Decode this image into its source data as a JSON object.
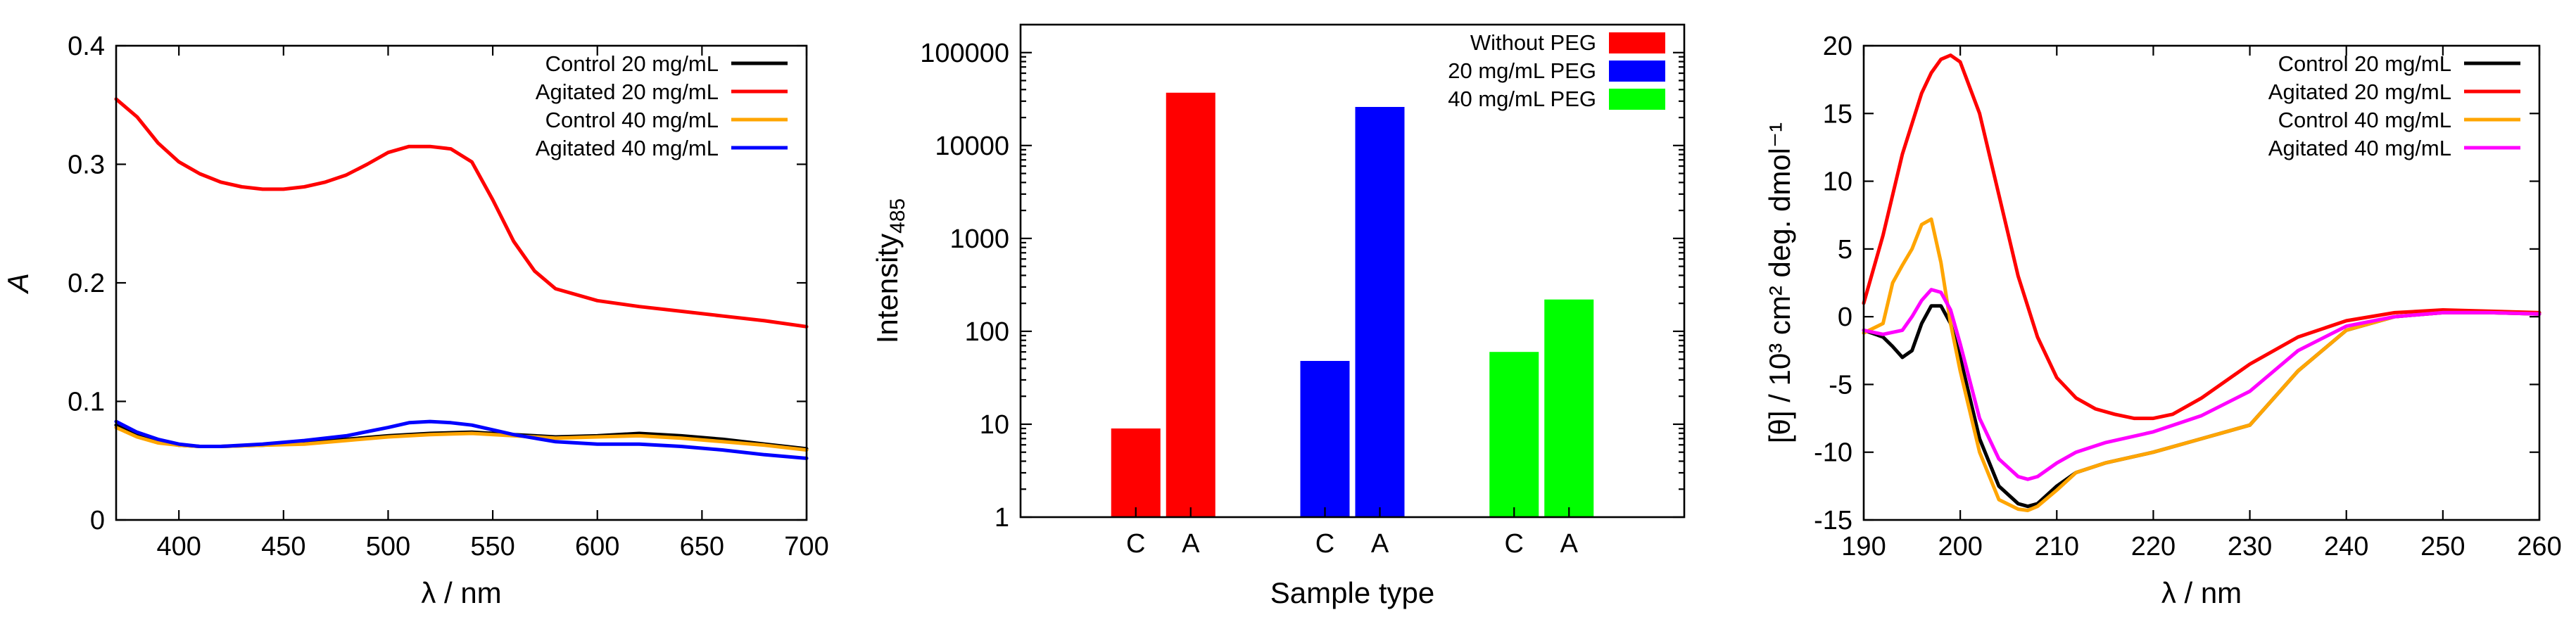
{
  "chart_data": [
    {
      "id": "uv",
      "type": "line",
      "title": "",
      "xlabel": "λ / nm",
      "ylabel": "A",
      "xlim": [
        370,
        700
      ],
      "ylim": [
        0,
        0.4
      ],
      "xticks": [
        400,
        450,
        500,
        550,
        600,
        650,
        700
      ],
      "yticks": [
        0,
        0.1,
        0.2,
        0.3,
        0.4
      ],
      "legend_position": "top-right",
      "grid": false,
      "series": [
        {
          "name": "Control 20 mg/mL",
          "color": "#000000",
          "x": [
            370,
            380,
            390,
            400,
            410,
            420,
            440,
            460,
            480,
            500,
            520,
            540,
            560,
            580,
            600,
            620,
            640,
            660,
            680,
            700
          ],
          "y": [
            0.08,
            0.072,
            0.066,
            0.063,
            0.062,
            0.062,
            0.063,
            0.065,
            0.068,
            0.071,
            0.073,
            0.074,
            0.072,
            0.07,
            0.071,
            0.073,
            0.071,
            0.068,
            0.064,
            0.06
          ]
        },
        {
          "name": "Agitated 20 mg/mL",
          "color": "#ff0000",
          "x": [
            370,
            380,
            390,
            400,
            410,
            420,
            430,
            440,
            450,
            460,
            470,
            480,
            490,
            500,
            510,
            520,
            530,
            540,
            550,
            560,
            570,
            580,
            600,
            620,
            640,
            660,
            680,
            700
          ],
          "y": [
            0.355,
            0.34,
            0.318,
            0.302,
            0.292,
            0.285,
            0.281,
            0.279,
            0.279,
            0.281,
            0.285,
            0.291,
            0.3,
            0.31,
            0.315,
            0.315,
            0.313,
            0.302,
            0.27,
            0.235,
            0.21,
            0.195,
            0.185,
            0.18,
            0.176,
            0.172,
            0.168,
            0.163
          ]
        },
        {
          "name": "Control 40 mg/mL",
          "color": "#ffa500",
          "x": [
            370,
            380,
            390,
            400,
            410,
            420,
            440,
            460,
            480,
            500,
            520,
            540,
            560,
            580,
            600,
            620,
            640,
            660,
            680,
            700
          ],
          "y": [
            0.078,
            0.07,
            0.065,
            0.063,
            0.062,
            0.062,
            0.063,
            0.064,
            0.067,
            0.07,
            0.072,
            0.073,
            0.071,
            0.069,
            0.07,
            0.071,
            0.069,
            0.066,
            0.063,
            0.059
          ]
        },
        {
          "name": "Agitated 40 mg/mL",
          "color": "#0000ff",
          "x": [
            370,
            380,
            390,
            400,
            410,
            420,
            440,
            460,
            480,
            500,
            510,
            520,
            530,
            540,
            560,
            580,
            600,
            620,
            640,
            660,
            680,
            700
          ],
          "y": [
            0.083,
            0.074,
            0.068,
            0.064,
            0.062,
            0.062,
            0.064,
            0.067,
            0.071,
            0.078,
            0.082,
            0.083,
            0.082,
            0.08,
            0.072,
            0.066,
            0.064,
            0.064,
            0.062,
            0.059,
            0.055,
            0.052
          ]
        }
      ]
    },
    {
      "id": "tht",
      "type": "bar",
      "title": "",
      "xlabel": "Sample type",
      "ylabel_main": "Intensity",
      "ylabel_sub": "485",
      "yscale": "log",
      "ylim": [
        1,
        200000
      ],
      "yticks": [
        1,
        10,
        100,
        1000,
        10000,
        100000
      ],
      "ytick_labels": [
        "1",
        "10",
        "100",
        "1000",
        "10000",
        "100000"
      ],
      "legend_position": "top-right",
      "grid": false,
      "categories": [
        "C",
        "A",
        "C",
        "A",
        "C",
        "A"
      ],
      "groups": [
        {
          "name": "Without PEG",
          "color": "#ff0000",
          "values": [
            9,
            37000
          ]
        },
        {
          "name": "20 mg/mL PEG",
          "color": "#0000ff",
          "values": [
            48,
            26000
          ]
        },
        {
          "name": "40 mg/mL PEG",
          "color": "#00ff00",
          "values": [
            60,
            220
          ]
        }
      ]
    },
    {
      "id": "cd",
      "type": "line",
      "title": "",
      "xlabel": "λ / nm",
      "ylabel": "[θ] / 10³ cm² deg. dmol⁻¹",
      "xlim": [
        190,
        260
      ],
      "ylim": [
        -15,
        20
      ],
      "xticks": [
        190,
        200,
        210,
        220,
        230,
        240,
        250,
        260
      ],
      "yticks": [
        -15,
        -10,
        -5,
        0,
        5,
        10,
        15,
        20
      ],
      "legend_position": "top-right",
      "grid": false,
      "series": [
        {
          "name": "Control 20 mg/mL",
          "color": "#000000",
          "x": [
            190,
            192,
            193,
            194,
            195,
            196,
            197,
            198,
            199,
            200,
            202,
            204,
            206,
            207,
            208,
            210,
            212,
            215,
            220,
            225,
            230,
            235,
            240,
            245,
            250,
            255,
            260
          ],
          "y": [
            -1,
            -1.5,
            -2.2,
            -3,
            -2.5,
            -0.5,
            0.8,
            0.8,
            -0.5,
            -3,
            -9,
            -12.5,
            -13.8,
            -14,
            -13.8,
            -12.5,
            -11.5,
            -10.8,
            -10,
            -9,
            -8,
            -4,
            -1,
            0,
            0.3,
            0.3,
            0.2
          ]
        },
        {
          "name": "Agitated 20 mg/mL",
          "color": "#ff0000",
          "x": [
            190,
            192,
            194,
            196,
            197,
            198,
            199,
            200,
            202,
            204,
            206,
            208,
            210,
            212,
            214,
            216,
            218,
            220,
            222,
            225,
            230,
            235,
            240,
            245,
            250,
            255,
            260
          ],
          "y": [
            1,
            6,
            12,
            16.5,
            18,
            19,
            19.3,
            18.8,
            15,
            9,
            3,
            -1.5,
            -4.5,
            -6,
            -6.8,
            -7.2,
            -7.5,
            -7.5,
            -7.2,
            -6,
            -3.5,
            -1.5,
            -0.3,
            0.3,
            0.5,
            0.4,
            0.3
          ]
        },
        {
          "name": "Control 40 mg/mL",
          "color": "#ffa500",
          "x": [
            190,
            192,
            193,
            194,
            195,
            196,
            197,
            198,
            199,
            200,
            202,
            204,
            206,
            207,
            208,
            210,
            212,
            215,
            220,
            225,
            230,
            235,
            240,
            245,
            250,
            255,
            260
          ],
          "y": [
            -1.2,
            -0.5,
            2.5,
            3.8,
            5,
            6.8,
            7.2,
            4,
            -0.5,
            -4,
            -10,
            -13.5,
            -14.2,
            -14.3,
            -14,
            -12.8,
            -11.5,
            -10.8,
            -10,
            -9,
            -8,
            -4,
            -1,
            0,
            0.3,
            0.3,
            0.2
          ]
        },
        {
          "name": "Agitated 40 mg/mL",
          "color": "#ff00ff",
          "x": [
            190,
            192,
            194,
            195,
            196,
            197,
            198,
            199,
            200,
            202,
            204,
            206,
            207,
            208,
            210,
            212,
            215,
            220,
            225,
            230,
            235,
            240,
            245,
            250,
            255,
            260
          ],
          "y": [
            -1,
            -1.3,
            -1,
            0,
            1.2,
            2,
            1.8,
            0.5,
            -2,
            -7.5,
            -10.5,
            -11.8,
            -12,
            -11.8,
            -10.8,
            -10,
            -9.3,
            -8.5,
            -7.3,
            -5.5,
            -2.5,
            -0.7,
            0,
            0.3,
            0.3,
            0.2
          ]
        }
      ]
    }
  ]
}
